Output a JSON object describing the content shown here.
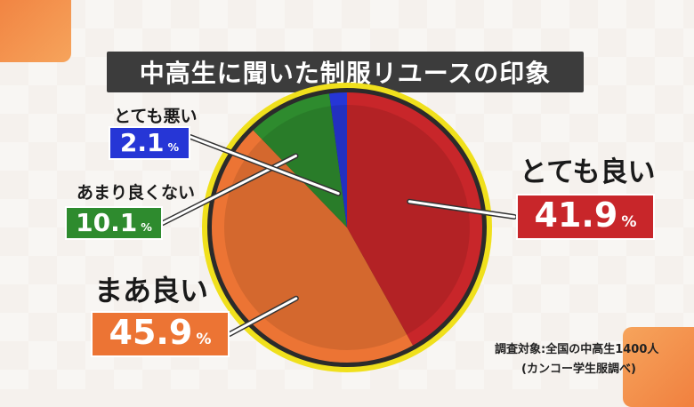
{
  "title": "中高生に聞いた制服リユースの印象",
  "chart_data": {
    "type": "pie",
    "slices": [
      {
        "label": "とても良い",
        "value": 41.9,
        "color": "#c8262a"
      },
      {
        "label": "まあ良い",
        "value": 45.9,
        "color": "#ec7434"
      },
      {
        "label": "あまり良くない",
        "value": 10.1,
        "color": "#2e8b2e"
      },
      {
        "label": "とても悪い",
        "value": 2.1,
        "color": "#2636d6"
      }
    ],
    "percent_sign": "%",
    "rim_color": "#f0e01c"
  },
  "source": {
    "line1": "調査対象:全国の中高生1400人",
    "line2": "(カンコー学生服調べ)"
  }
}
